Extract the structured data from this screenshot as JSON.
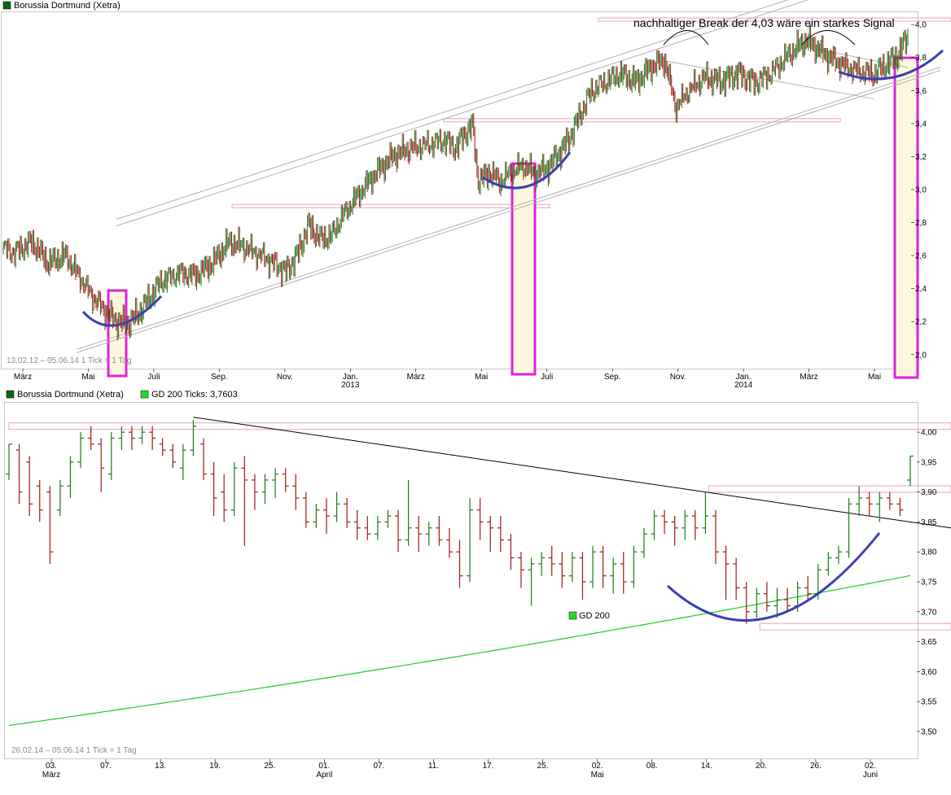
{
  "colors": {
    "up": "#1b7a1b",
    "down": "#a01818",
    "gd200": "#22cc22",
    "channel": "#b0b0b0",
    "trendline": "#000000",
    "zone_pink": "#e8a0c0",
    "highlight_border": "#e020e0",
    "highlight_fill": "#fdf8dc",
    "arc_blue": "#3a3fb0",
    "legend_dark_green": "#0a6a0a",
    "legend_light_green": "#22dd22"
  },
  "chart_data": [
    {
      "type": "candlestick",
      "legend": "Borussia Dortmund (Xetra)",
      "range_text": "13.02.12 – 05.06.14   1 Tick = 1 Tag",
      "annotation": "nachhaltiger Break der 4,03 wäre ein starkes Signal",
      "x_ticks": [
        "März",
        "Mai",
        "Juli",
        "Sep.",
        "Nov.",
        "Jan.",
        "März",
        "Mai",
        "Juli",
        "Sep.",
        "Nov.",
        "Jan.",
        "März",
        "Mai"
      ],
      "x_year_labels": [
        {
          "after_tick": 5,
          "label": "2013"
        },
        {
          "after_tick": 11,
          "label": "2014"
        }
      ],
      "ylim": [
        1.92,
        4.06
      ],
      "y_ticks": [
        "2,0",
        "2,2",
        "2,4",
        "2,6",
        "2,8",
        "3,0",
        "3,2",
        "3,4",
        "3,6",
        "3,8",
        "4,0"
      ],
      "y_tick_values": [
        2.0,
        2.2,
        2.4,
        2.6,
        2.8,
        3.0,
        3.2,
        3.4,
        3.6,
        3.8,
        4.0
      ],
      "price_path": [
        [
          0,
          2.65
        ],
        [
          10,
          2.62
        ],
        [
          25,
          2.68
        ],
        [
          40,
          2.55
        ],
        [
          55,
          2.6
        ],
        [
          70,
          2.45
        ],
        [
          80,
          2.35
        ],
        [
          92,
          2.25
        ],
        [
          100,
          2.2
        ],
        [
          110,
          2.18
        ],
        [
          120,
          2.25
        ],
        [
          130,
          2.35
        ],
        [
          140,
          2.45
        ],
        [
          155,
          2.5
        ],
        [
          170,
          2.48
        ],
        [
          185,
          2.55
        ],
        [
          200,
          2.68
        ],
        [
          215,
          2.65
        ],
        [
          230,
          2.6
        ],
        [
          240,
          2.55
        ],
        [
          250,
          2.5
        ],
        [
          260,
          2.6
        ],
        [
          270,
          2.78
        ],
        [
          280,
          2.7
        ],
        [
          290,
          2.72
        ],
        [
          300,
          2.85
        ],
        [
          315,
          2.98
        ],
        [
          330,
          3.1
        ],
        [
          345,
          3.2
        ],
        [
          360,
          3.25
        ],
        [
          375,
          3.28
        ],
        [
          390,
          3.3
        ],
        [
          400,
          3.25
        ],
        [
          410,
          3.35
        ],
        [
          415,
          3.38
        ],
        [
          420,
          3.05
        ],
        [
          430,
          3.1
        ],
        [
          440,
          3.05
        ],
        [
          450,
          3.12
        ],
        [
          460,
          3.15
        ],
        [
          470,
          3.1
        ],
        [
          480,
          3.12
        ],
        [
          490,
          3.2
        ],
        [
          500,
          3.3
        ],
        [
          510,
          3.45
        ],
        [
          520,
          3.6
        ],
        [
          530,
          3.65
        ],
        [
          545,
          3.7
        ],
        [
          560,
          3.65
        ],
        [
          575,
          3.75
        ],
        [
          585,
          3.78
        ],
        [
          595,
          3.5
        ],
        [
          605,
          3.6
        ],
        [
          620,
          3.68
        ],
        [
          635,
          3.65
        ],
        [
          650,
          3.7
        ],
        [
          665,
          3.65
        ],
        [
          680,
          3.72
        ],
        [
          695,
          3.82
        ],
        [
          710,
          3.9
        ],
        [
          720,
          3.85
        ],
        [
          730,
          3.8
        ],
        [
          745,
          3.75
        ],
        [
          760,
          3.72
        ],
        [
          770,
          3.7
        ],
        [
          780,
          3.75
        ],
        [
          790,
          3.8
        ],
        [
          800,
          3.92
        ]
      ],
      "x_domain": [
        0,
        800
      ],
      "horizontal_zones": [
        {
          "x_from": 285,
          "x_to": 675,
          "value": 2.9
        },
        {
          "x_from": 545,
          "x_to": 1032,
          "value": 3.42
        },
        {
          "x_from": 735,
          "x_to": 1168,
          "value": 4.03
        }
      ]
    },
    {
      "type": "candlestick",
      "legend": "Borussia Dortmund (Xetra)",
      "legend2": "GD 200 Ticks: 3,7603",
      "gd_label": "GD 200",
      "range_text": "26.02.14 – 05.06.14   1 Tick = 1 Tag",
      "x_ticks": [
        "03.",
        "07.",
        "13.",
        "19.",
        "25.",
        "01.",
        "07.",
        "11.",
        "17.",
        "25.",
        "02.",
        "08.",
        "14.",
        "20.",
        "26.",
        "02."
      ],
      "x_month_labels": [
        {
          "after_tick": 0,
          "label": "März"
        },
        {
          "after_tick": 5,
          "label": "April"
        },
        {
          "after_tick": 10,
          "label": "Mai"
        },
        {
          "after_tick": 15,
          "label": "Juni"
        }
      ],
      "ylim": [
        3.455,
        4.045
      ],
      "y_ticks": [
        "3,50",
        "3,55",
        "3,60",
        "3,65",
        "3,70",
        "3,75",
        "3,80",
        "3,85",
        "3,90",
        "3,95",
        "4,00"
      ],
      "y_tick_values": [
        3.5,
        3.55,
        3.6,
        3.65,
        3.7,
        3.75,
        3.8,
        3.85,
        3.9,
        3.95,
        4.0
      ],
      "bars": [
        [
          3.93,
          3.98,
          3.92,
          3.98
        ],
        [
          3.97,
          3.98,
          3.88,
          3.9
        ],
        [
          3.95,
          3.96,
          3.86,
          3.88
        ],
        [
          3.91,
          3.92,
          3.85,
          3.87
        ],
        [
          3.9,
          3.91,
          3.78,
          3.8
        ],
        [
          3.87,
          3.92,
          3.86,
          3.91
        ],
        [
          3.91,
          3.96,
          3.89,
          3.95
        ],
        [
          3.95,
          4.0,
          3.94,
          3.99
        ],
        [
          3.99,
          4.01,
          3.97,
          3.98
        ],
        [
          3.98,
          3.99,
          3.9,
          3.94
        ],
        [
          3.93,
          4.0,
          3.92,
          3.99
        ],
        [
          3.99,
          4.01,
          3.97,
          4.0
        ],
        [
          4.0,
          4.01,
          3.97,
          3.99
        ],
        [
          3.99,
          4.01,
          3.98,
          4.0
        ],
        [
          4.0,
          4.01,
          3.97,
          3.99
        ],
        [
          3.98,
          3.99,
          3.96,
          3.97
        ],
        [
          3.97,
          3.98,
          3.94,
          3.95
        ],
        [
          3.94,
          3.98,
          3.92,
          3.97
        ],
        [
          3.97,
          4.02,
          3.96,
          4.01
        ],
        [
          3.98,
          3.99,
          3.92,
          3.93
        ],
        [
          3.93,
          3.95,
          3.86,
          3.89
        ],
        [
          3.9,
          3.93,
          3.85,
          3.87
        ],
        [
          3.87,
          3.95,
          3.86,
          3.94
        ],
        [
          3.94,
          3.96,
          3.81,
          3.92
        ],
        [
          3.92,
          3.93,
          3.87,
          3.9
        ],
        [
          3.9,
          3.93,
          3.88,
          3.92
        ],
        [
          3.92,
          3.94,
          3.89,
          3.93
        ],
        [
          3.93,
          3.94,
          3.9,
          3.91
        ],
        [
          3.91,
          3.93,
          3.87,
          3.89
        ],
        [
          3.89,
          3.9,
          3.84,
          3.85
        ],
        [
          3.85,
          3.88,
          3.84,
          3.87
        ],
        [
          3.87,
          3.89,
          3.83,
          3.86
        ],
        [
          3.86,
          3.9,
          3.85,
          3.88
        ],
        [
          3.88,
          3.89,
          3.84,
          3.85
        ],
        [
          3.85,
          3.87,
          3.82,
          3.84
        ],
        [
          3.84,
          3.86,
          3.82,
          3.83
        ],
        [
          3.83,
          3.86,
          3.82,
          3.85
        ],
        [
          3.85,
          3.87,
          3.84,
          3.86
        ],
        [
          3.86,
          3.87,
          3.8,
          3.82
        ],
        [
          3.82,
          3.92,
          3.81,
          3.84
        ],
        [
          3.84,
          3.86,
          3.8,
          3.83
        ],
        [
          3.83,
          3.85,
          3.81,
          3.84
        ],
        [
          3.84,
          3.86,
          3.81,
          3.82
        ],
        [
          3.82,
          3.84,
          3.79,
          3.8
        ],
        [
          3.8,
          3.82,
          3.74,
          3.76
        ],
        [
          3.76,
          3.89,
          3.75,
          3.87
        ],
        [
          3.87,
          3.89,
          3.82,
          3.85
        ],
        [
          3.85,
          3.86,
          3.8,
          3.84
        ],
        [
          3.84,
          3.86,
          3.8,
          3.82
        ],
        [
          3.82,
          3.83,
          3.77,
          3.79
        ],
        [
          3.79,
          3.8,
          3.74,
          3.77
        ],
        [
          3.77,
          3.79,
          3.71,
          3.78
        ],
        [
          3.78,
          3.8,
          3.76,
          3.79
        ],
        [
          3.79,
          3.81,
          3.76,
          3.78
        ],
        [
          3.78,
          3.8,
          3.74,
          3.76
        ],
        [
          3.76,
          3.8,
          3.75,
          3.79
        ],
        [
          3.79,
          3.8,
          3.72,
          3.75
        ],
        [
          3.75,
          3.81,
          3.74,
          3.8
        ],
        [
          3.8,
          3.81,
          3.74,
          3.76
        ],
        [
          3.76,
          3.79,
          3.73,
          3.78
        ],
        [
          3.78,
          3.8,
          3.73,
          3.75
        ],
        [
          3.75,
          3.81,
          3.74,
          3.8
        ],
        [
          3.8,
          3.84,
          3.79,
          3.83
        ],
        [
          3.83,
          3.87,
          3.82,
          3.86
        ],
        [
          3.86,
          3.87,
          3.83,
          3.85
        ],
        [
          3.85,
          3.86,
          3.81,
          3.84
        ],
        [
          3.84,
          3.87,
          3.82,
          3.86
        ],
        [
          3.86,
          3.87,
          3.82,
          3.84
        ],
        [
          3.84,
          3.9,
          3.83,
          3.86
        ],
        [
          3.86,
          3.87,
          3.78,
          3.8
        ],
        [
          3.8,
          3.81,
          3.72,
          3.78
        ],
        [
          3.78,
          3.79,
          3.72,
          3.74
        ],
        [
          3.74,
          3.75,
          3.68,
          3.7
        ],
        [
          3.7,
          3.74,
          3.69,
          3.73
        ],
        [
          3.73,
          3.75,
          3.7,
          3.71
        ],
        [
          3.71,
          3.74,
          3.69,
          3.72
        ],
        [
          3.72,
          3.74,
          3.7,
          3.71
        ],
        [
          3.71,
          3.75,
          3.7,
          3.74
        ],
        [
          3.74,
          3.76,
          3.72,
          3.73
        ],
        [
          3.73,
          3.78,
          3.72,
          3.77
        ],
        [
          3.77,
          3.8,
          3.76,
          3.79
        ],
        [
          3.79,
          3.81,
          3.78,
          3.8
        ],
        [
          3.8,
          3.89,
          3.79,
          3.88
        ],
        [
          3.88,
          3.91,
          3.86,
          3.89
        ],
        [
          3.89,
          3.9,
          3.86,
          3.88
        ],
        [
          3.88,
          3.9,
          3.85,
          3.89
        ],
        [
          3.89,
          3.9,
          3.87,
          3.88
        ],
        [
          3.88,
          3.89,
          3.86,
          3.87
        ],
        [
          3.92,
          3.96,
          3.91,
          3.96
        ]
      ],
      "gd200": {
        "start": 3.51,
        "end": 3.7603
      },
      "downtrend_line": {
        "from_bar": 18,
        "from_value": 4.025,
        "to_bar": 113,
        "to_value": 3.84
      },
      "horizontal_zones": [
        {
          "value": 4.01,
          "x_from_bar": 0,
          "x_to_bar": 113
        },
        {
          "value": 3.905,
          "x_from_bar": 68,
          "x_to_bar": 113
        },
        {
          "value": 3.675,
          "x_from_bar": 73,
          "x_to_bar": 113
        }
      ]
    }
  ]
}
